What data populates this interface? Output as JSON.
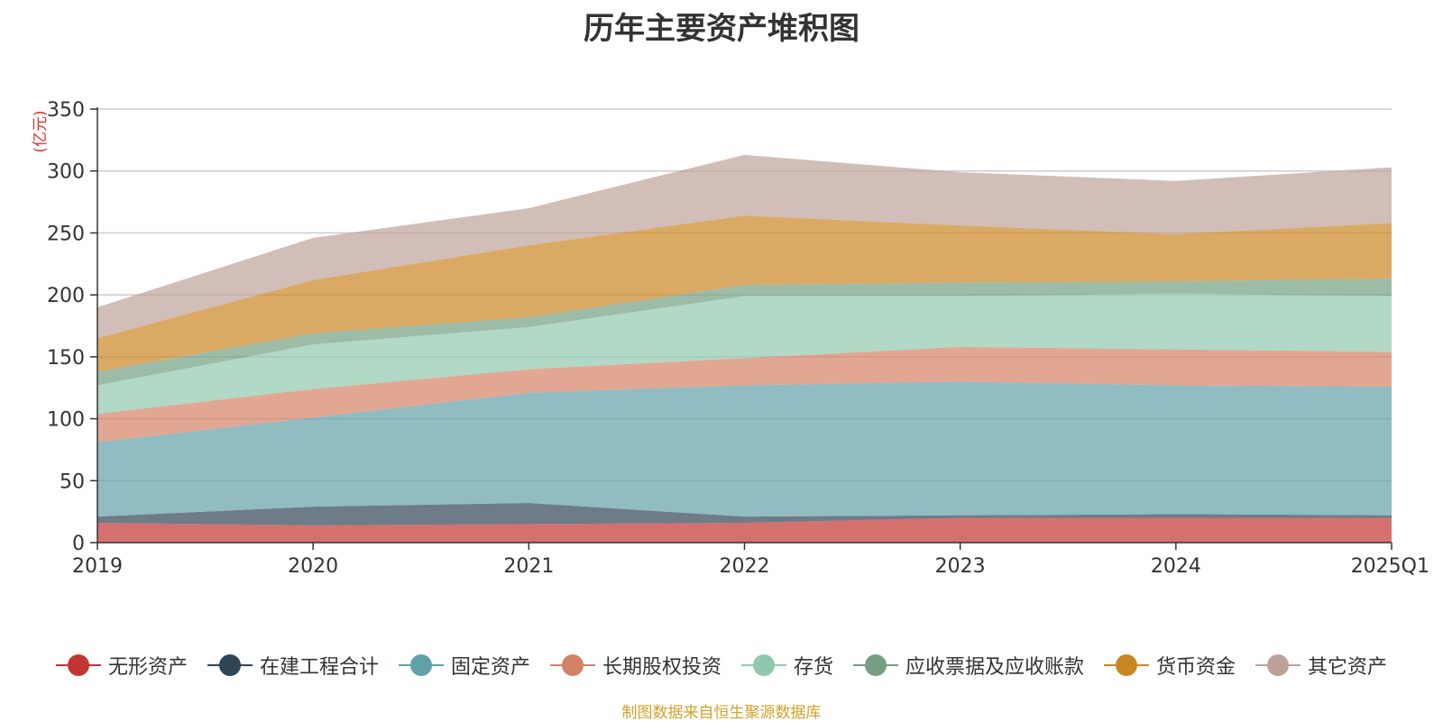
{
  "chart_data": {
    "type": "area",
    "stacked": true,
    "title": "历年主要资产堆积图",
    "unit_label": "(亿元)",
    "categories": [
      "2019",
      "2020",
      "2021",
      "2022",
      "2023",
      "2024",
      "2025Q1"
    ],
    "ylim": [
      0,
      350
    ],
    "yticks": [
      0,
      50,
      100,
      150,
      200,
      250,
      300,
      350
    ],
    "grid": true,
    "legend_position": "bottom",
    "series": [
      {
        "name": "无形资产",
        "color": "#c23531",
        "values": [
          16,
          14,
          15,
          16,
          20,
          20,
          20
        ]
      },
      {
        "name": "在建工程合计",
        "color": "#2f4554",
        "values": [
          5,
          15,
          17,
          5,
          2,
          3,
          2
        ]
      },
      {
        "name": "固定资产",
        "color": "#61a0a8",
        "values": [
          60,
          72,
          89,
          106,
          108,
          104,
          104
        ]
      },
      {
        "name": "长期股权投资",
        "color": "#d48265",
        "values": [
          23,
          23,
          19,
          22,
          28,
          29,
          28
        ]
      },
      {
        "name": "存货",
        "color": "#91c7ae",
        "values": [
          23,
          36,
          34,
          50,
          41,
          45,
          45
        ]
      },
      {
        "name": "应收票据及应收账款",
        "color": "#749f83",
        "values": [
          11,
          9,
          8,
          9,
          11,
          10,
          14
        ]
      },
      {
        "name": "货币资金",
        "color": "#ca8622",
        "values": [
          27,
          43,
          58,
          56,
          46,
          38,
          45
        ]
      },
      {
        "name": "其它资产",
        "color": "#bda29a",
        "values": [
          25,
          34,
          30,
          49,
          43,
          43,
          45
        ]
      }
    ]
  },
  "source_note": "制图数据来自恒生聚源数据库"
}
